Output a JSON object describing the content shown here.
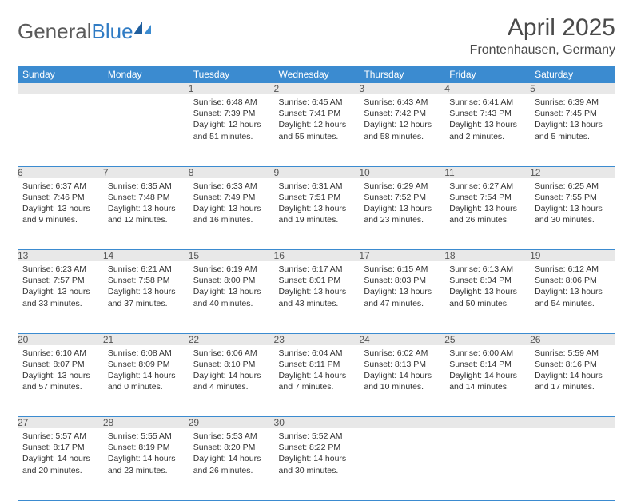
{
  "brand": {
    "name_a": "General",
    "name_b": "Blue"
  },
  "title": "April 2025",
  "location": "Frontenhausen, Germany",
  "colors": {
    "header_bg": "#3b8bd0",
    "header_text": "#ffffff",
    "daynum_bg": "#e8e8e8",
    "rule": "#3b8bd0",
    "brand_blue": "#2f7bc4",
    "brand_gray": "#5a5a5a",
    "body_text": "#333333",
    "page_bg": "#ffffff"
  },
  "weekdays": [
    "Sunday",
    "Monday",
    "Tuesday",
    "Wednesday",
    "Thursday",
    "Friday",
    "Saturday"
  ],
  "weeks": [
    [
      null,
      null,
      {
        "n": "1",
        "sr": "6:48 AM",
        "ss": "7:39 PM",
        "dl": "12 hours and 51 minutes."
      },
      {
        "n": "2",
        "sr": "6:45 AM",
        "ss": "7:41 PM",
        "dl": "12 hours and 55 minutes."
      },
      {
        "n": "3",
        "sr": "6:43 AM",
        "ss": "7:42 PM",
        "dl": "12 hours and 58 minutes."
      },
      {
        "n": "4",
        "sr": "6:41 AM",
        "ss": "7:43 PM",
        "dl": "13 hours and 2 minutes."
      },
      {
        "n": "5",
        "sr": "6:39 AM",
        "ss": "7:45 PM",
        "dl": "13 hours and 5 minutes."
      }
    ],
    [
      {
        "n": "6",
        "sr": "6:37 AM",
        "ss": "7:46 PM",
        "dl": "13 hours and 9 minutes."
      },
      {
        "n": "7",
        "sr": "6:35 AM",
        "ss": "7:48 PM",
        "dl": "13 hours and 12 minutes."
      },
      {
        "n": "8",
        "sr": "6:33 AM",
        "ss": "7:49 PM",
        "dl": "13 hours and 16 minutes."
      },
      {
        "n": "9",
        "sr": "6:31 AM",
        "ss": "7:51 PM",
        "dl": "13 hours and 19 minutes."
      },
      {
        "n": "10",
        "sr": "6:29 AM",
        "ss": "7:52 PM",
        "dl": "13 hours and 23 minutes."
      },
      {
        "n": "11",
        "sr": "6:27 AM",
        "ss": "7:54 PM",
        "dl": "13 hours and 26 minutes."
      },
      {
        "n": "12",
        "sr": "6:25 AM",
        "ss": "7:55 PM",
        "dl": "13 hours and 30 minutes."
      }
    ],
    [
      {
        "n": "13",
        "sr": "6:23 AM",
        "ss": "7:57 PM",
        "dl": "13 hours and 33 minutes."
      },
      {
        "n": "14",
        "sr": "6:21 AM",
        "ss": "7:58 PM",
        "dl": "13 hours and 37 minutes."
      },
      {
        "n": "15",
        "sr": "6:19 AM",
        "ss": "8:00 PM",
        "dl": "13 hours and 40 minutes."
      },
      {
        "n": "16",
        "sr": "6:17 AM",
        "ss": "8:01 PM",
        "dl": "13 hours and 43 minutes."
      },
      {
        "n": "17",
        "sr": "6:15 AM",
        "ss": "8:03 PM",
        "dl": "13 hours and 47 minutes."
      },
      {
        "n": "18",
        "sr": "6:13 AM",
        "ss": "8:04 PM",
        "dl": "13 hours and 50 minutes."
      },
      {
        "n": "19",
        "sr": "6:12 AM",
        "ss": "8:06 PM",
        "dl": "13 hours and 54 minutes."
      }
    ],
    [
      {
        "n": "20",
        "sr": "6:10 AM",
        "ss": "8:07 PM",
        "dl": "13 hours and 57 minutes."
      },
      {
        "n": "21",
        "sr": "6:08 AM",
        "ss": "8:09 PM",
        "dl": "14 hours and 0 minutes."
      },
      {
        "n": "22",
        "sr": "6:06 AM",
        "ss": "8:10 PM",
        "dl": "14 hours and 4 minutes."
      },
      {
        "n": "23",
        "sr": "6:04 AM",
        "ss": "8:11 PM",
        "dl": "14 hours and 7 minutes."
      },
      {
        "n": "24",
        "sr": "6:02 AM",
        "ss": "8:13 PM",
        "dl": "14 hours and 10 minutes."
      },
      {
        "n": "25",
        "sr": "6:00 AM",
        "ss": "8:14 PM",
        "dl": "14 hours and 14 minutes."
      },
      {
        "n": "26",
        "sr": "5:59 AM",
        "ss": "8:16 PM",
        "dl": "14 hours and 17 minutes."
      }
    ],
    [
      {
        "n": "27",
        "sr": "5:57 AM",
        "ss": "8:17 PM",
        "dl": "14 hours and 20 minutes."
      },
      {
        "n": "28",
        "sr": "5:55 AM",
        "ss": "8:19 PM",
        "dl": "14 hours and 23 minutes."
      },
      {
        "n": "29",
        "sr": "5:53 AM",
        "ss": "8:20 PM",
        "dl": "14 hours and 26 minutes."
      },
      {
        "n": "30",
        "sr": "5:52 AM",
        "ss": "8:22 PM",
        "dl": "14 hours and 30 minutes."
      },
      null,
      null,
      null
    ]
  ],
  "labels": {
    "sunrise": "Sunrise:",
    "sunset": "Sunset:",
    "daylight": "Daylight:"
  }
}
